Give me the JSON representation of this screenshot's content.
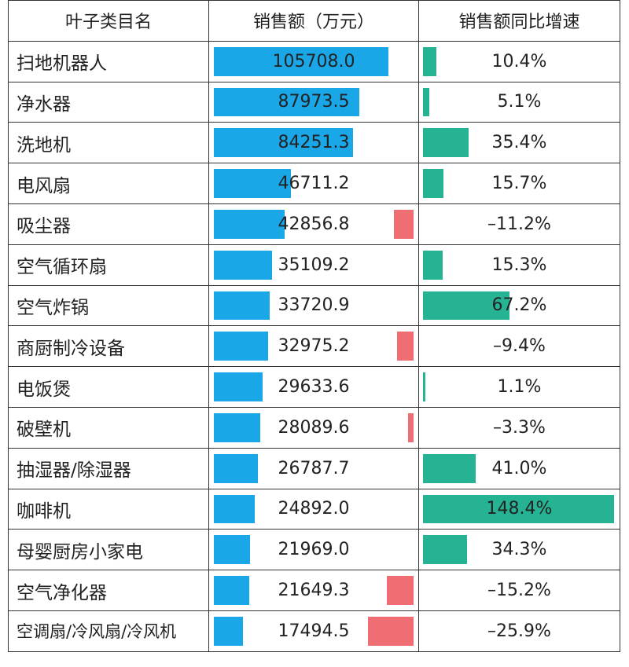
{
  "headers": [
    "叶子类目名",
    "销售额（万元）",
    "销售额同比增速"
  ],
  "colors": {
    "sales_bar": "#1aa7e8",
    "growth_pos": "#26b394",
    "growth_neg": "#ee6e73",
    "border": "#333333"
  },
  "chart_data": {
    "type": "table",
    "columns": [
      "叶子类目名",
      "销售额（万元）",
      "销售额同比增速"
    ],
    "rows": [
      {
        "category": "扫地机器人",
        "sales": 105708.0,
        "sales_label": "105708.0",
        "growth": 10.4,
        "growth_label": "10.4%"
      },
      {
        "category": "净水器",
        "sales": 87973.5,
        "sales_label": "87973.5",
        "growth": 5.1,
        "growth_label": "5.1%"
      },
      {
        "category": "洗地机",
        "sales": 84251.3,
        "sales_label": "84251.3",
        "growth": 35.4,
        "growth_label": "35.4%"
      },
      {
        "category": "电风扇",
        "sales": 46711.2,
        "sales_label": "46711.2",
        "growth": 15.7,
        "growth_label": "15.7%"
      },
      {
        "category": "吸尘器",
        "sales": 42856.8,
        "sales_label": "42856.8",
        "growth": -11.2,
        "growth_label": "–11.2%"
      },
      {
        "category": "空气循环扇",
        "sales": 35109.2,
        "sales_label": "35109.2",
        "growth": 15.3,
        "growth_label": "15.3%"
      },
      {
        "category": "空气炸锅",
        "sales": 33720.9,
        "sales_label": "33720.9",
        "growth": 67.2,
        "growth_label": "67.2%"
      },
      {
        "category": "商厨制冷设备",
        "sales": 32975.2,
        "sales_label": "32975.2",
        "growth": -9.4,
        "growth_label": "–9.4%"
      },
      {
        "category": "电饭煲",
        "sales": 29633.6,
        "sales_label": "29633.6",
        "growth": 1.1,
        "growth_label": "1.1%"
      },
      {
        "category": "破壁机",
        "sales": 28089.6,
        "sales_label": "28089.6",
        "growth": -3.3,
        "growth_label": "–3.3%"
      },
      {
        "category": "抽湿器/除湿器",
        "sales": 26787.7,
        "sales_label": "26787.7",
        "growth": 41.0,
        "growth_label": "41.0%"
      },
      {
        "category": "咖啡机",
        "sales": 24892.0,
        "sales_label": "24892.0",
        "growth": 148.4,
        "growth_label": "148.4%"
      },
      {
        "category": "母婴厨房小家电",
        "sales": 21969.0,
        "sales_label": "21969.0",
        "growth": 34.3,
        "growth_label": "34.3%"
      },
      {
        "category": "空气净化器",
        "sales": 21649.3,
        "sales_label": "21649.3",
        "growth": -15.2,
        "growth_label": "–15.2%"
      },
      {
        "category": "空调扇/冷风扇/冷风机",
        "sales": 17494.5,
        "sales_label": "17494.5",
        "growth": -25.9,
        "growth_label": "–25.9%"
      }
    ]
  }
}
